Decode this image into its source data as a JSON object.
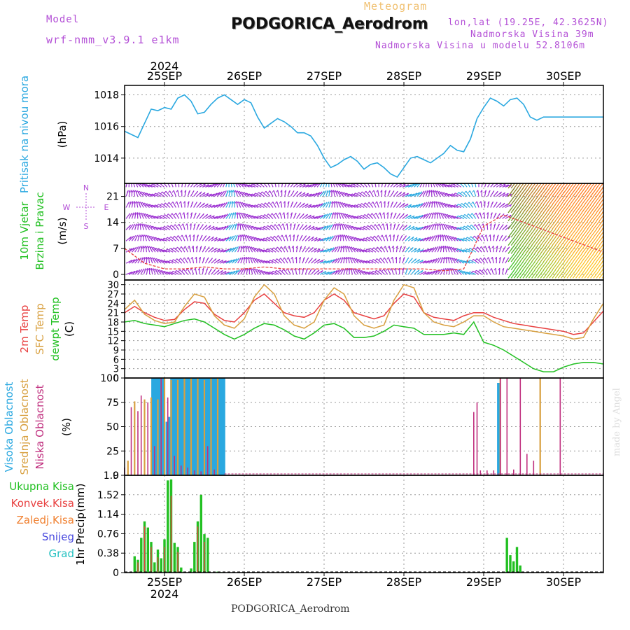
{
  "header": {
    "model_label": "Model",
    "model_name": "wrf-nmm_v3.9.1 e1km",
    "meteogram": "Meteogram",
    "station": "PODGORICA_Aerodrom",
    "lonlat": "lon,lat (19.25E, 42.3625N)",
    "elevation": "Nadmorska Visina 39m",
    "model_elevation": "Nadmorska Visina u modelu 52.8106m",
    "credit": "made by Angel",
    "footer_station": "PODGORICA_Aerodrom"
  },
  "time_axis": {
    "year": "2024",
    "days": [
      "25SEP",
      "26SEP",
      "27SEP",
      "28SEP",
      "29SEP",
      "30SEP"
    ]
  },
  "colors": {
    "pressure": "#2aa8e0",
    "wind_purple": "#9b2fd1",
    "wind_blue": "#2aa8e0",
    "wind_green": "#22c022",
    "temp_2m": "#e84040",
    "temp_sfc": "#d8a040",
    "dewpoint": "#22c022",
    "cloud_high": "#2aa8e0",
    "cloud_mid": "#d8a040",
    "cloud_low": "#c0307f",
    "precip_total": "#22c022",
    "precip_conv": "#e84040"
  },
  "chart_data": [
    {
      "type": "line",
      "ylabel_main": "Pritisak na nivou mora",
      "ylabel_unit": "(hPa)",
      "yticks": [
        1014,
        1016,
        1018
      ],
      "ylim": [
        1012.4,
        1018.6
      ],
      "xlim": [
        0,
        144
      ],
      "series": [
        {
          "x": [
            0,
            2,
            4,
            6,
            8,
            10,
            12,
            14,
            16,
            18,
            20,
            22,
            24,
            26,
            28,
            30,
            32,
            34,
            36,
            38,
            40,
            42,
            44,
            46,
            48,
            50,
            52,
            54,
            56,
            58,
            60,
            62,
            64,
            66,
            68,
            70,
            72,
            74,
            76,
            78,
            80,
            82,
            84,
            86,
            88,
            90,
            92,
            94,
            96,
            98,
            100,
            102,
            104,
            106,
            108,
            110,
            112,
            114,
            116,
            118,
            120,
            122,
            124,
            126,
            128,
            130,
            132,
            134,
            136,
            138,
            140,
            142,
            144
          ],
          "values": [
            1015.7,
            1015.5,
            1015.3,
            1016.2,
            1017.1,
            1017.0,
            1017.2,
            1017.1,
            1017.8,
            1018.0,
            1017.6,
            1016.8,
            1016.9,
            1017.4,
            1017.8,
            1018.0,
            1017.7,
            1017.4,
            1017.7,
            1017.5,
            1016.6,
            1015.9,
            1016.2,
            1016.5,
            1016.3,
            1016.0,
            1015.6,
            1015.6,
            1015.4,
            1014.8,
            1014.0,
            1013.4,
            1013.6,
            1013.9,
            1014.1,
            1013.8,
            1013.3,
            1013.6,
            1013.7,
            1013.4,
            1013.0,
            1012.8,
            1013.4,
            1014.0,
            1014.1,
            1013.9,
            1013.7,
            1014.0,
            1014.3,
            1014.8,
            1014.5,
            1014.4,
            1015.2,
            1016.5,
            1017.2,
            1017.8,
            1017.6,
            1017.3,
            1017.7,
            1017.8,
            1017.4,
            1016.6,
            1016.4,
            1016.6,
            1016.6,
            1016.6,
            1016.6,
            1016.6,
            1016.6,
            1016.6,
            1016.6,
            1016.6,
            1016.6
          ]
        }
      ]
    },
    {
      "type": "scatter",
      "ylabel_main": "10m Vjetar",
      "ylabel_sub": "Brzina i Pravac",
      "ylabel_unit": "(m/s)",
      "compass": {
        "n": "N",
        "s": "S",
        "w": "W",
        "e": "E"
      },
      "yticks": [
        0,
        7,
        14,
        21
      ],
      "ylim": [
        -1.5,
        24.5
      ],
      "xlim": [
        0,
        144
      ],
      "series": [
        {
          "name": "speed",
          "x": [
            0,
            6,
            12,
            18,
            24,
            30,
            36,
            42,
            48,
            54,
            60,
            66,
            72,
            78,
            84,
            90,
            96,
            102,
            108,
            114,
            120,
            126,
            132,
            138,
            144
          ],
          "values": [
            7,
            3,
            1.5,
            1.5,
            2,
            1.5,
            1.5,
            2,
            1.5,
            1.5,
            1.5,
            1.5,
            1.5,
            1.5,
            1.5,
            1.5,
            1,
            1.5,
            13,
            16,
            14,
            12,
            10,
            8,
            6
          ]
        }
      ]
    },
    {
      "type": "line",
      "ylabel_a": "2m Temp",
      "ylabel_b": "SFC Temp",
      "ylabel_c": "dewpt Temp",
      "ylabel_unit": "(C)",
      "yticks": [
        0,
        3,
        6,
        9,
        12,
        15,
        18,
        21,
        24,
        27,
        30
      ],
      "ylim": [
        0,
        31.5
      ],
      "xlim": [
        0,
        144
      ],
      "x": [
        0,
        3,
        6,
        9,
        12,
        15,
        18,
        21,
        24,
        27,
        30,
        33,
        36,
        39,
        42,
        45,
        48,
        51,
        54,
        57,
        60,
        63,
        66,
        69,
        72,
        75,
        78,
        81,
        84,
        87,
        90,
        93,
        96,
        99,
        102,
        105,
        108,
        111,
        114,
        117,
        120,
        123,
        126,
        129,
        132,
        135,
        138,
        141,
        144
      ],
      "series": [
        {
          "name": "2m Temp",
          "values": [
            21,
            23,
            21,
            19.5,
            18.5,
            18.8,
            22,
            24.5,
            24,
            20.5,
            18.5,
            18,
            21,
            25,
            27,
            24,
            21,
            20,
            19.5,
            21,
            25,
            27,
            25,
            21,
            20,
            19,
            20,
            24,
            27,
            26,
            21,
            19.5,
            19,
            18.5,
            20,
            21,
            21,
            19.5,
            18.5,
            17.5,
            17,
            16.5,
            16,
            15.5,
            15,
            14,
            14.5,
            18,
            21.5
          ]
        },
        {
          "name": "SFC Temp",
          "values": [
            22,
            25,
            20.5,
            18.5,
            17.5,
            18,
            23,
            27,
            26,
            20,
            17,
            16,
            19,
            26,
            30,
            27,
            20,
            17,
            16,
            18,
            25,
            29,
            27,
            20,
            17,
            16,
            17,
            25,
            30,
            29,
            21,
            18,
            17,
            16.5,
            18,
            20,
            20,
            18,
            16.5,
            16,
            15.5,
            15,
            14.5,
            14,
            13.5,
            12.5,
            13,
            19,
            24
          ]
        },
        {
          "name": "dewpt Temp",
          "values": [
            18,
            18.5,
            17.5,
            17,
            16.5,
            17.5,
            18.5,
            19,
            18,
            16,
            14,
            12.5,
            14,
            16,
            17.5,
            17,
            15.5,
            13.5,
            12.5,
            14.5,
            17,
            17.5,
            16,
            13,
            13,
            13.5,
            15,
            17,
            16.5,
            16,
            14,
            14,
            14,
            14.5,
            14,
            18,
            11.5,
            10.5,
            9,
            7,
            5,
            3,
            2,
            2,
            3.5,
            4.5,
            5,
            5,
            4.5
          ]
        }
      ]
    },
    {
      "type": "bar",
      "ylabel_a": "Visoka Oblacnost",
      "ylabel_b": "Srednja Oblacnost",
      "ylabel_c": "Niska Oblacnost",
      "ylabel_unit": "(%)",
      "yticks": [
        0,
        25,
        50,
        75,
        100
      ],
      "ylim": [
        0,
        100
      ],
      "xlim": [
        0,
        144
      ],
      "series": [
        {
          "name": "Visoka Oblacnost",
          "x": [
            8.5,
            9.2,
            10,
            10.7,
            11.4,
            12.8,
            13.5,
            14.2,
            15,
            15.7,
            16.4,
            17.1,
            17.8,
            18.5,
            19.2,
            20,
            20.7,
            21.4,
            22.1,
            22.8,
            23.5,
            24.2,
            24.9,
            25.6,
            26.3,
            27,
            27.7,
            28.4,
            29.1,
            29.8,
            112.5
          ],
          "values": [
            100,
            100,
            100,
            100,
            100,
            55,
            60,
            100,
            100,
            100,
            100,
            100,
            100,
            100,
            100,
            100,
            100,
            100,
            100,
            100,
            100,
            100,
            100,
            100,
            100,
            100,
            100,
            100,
            100,
            100,
            95
          ]
        },
        {
          "name": "Srednja Oblacnost",
          "x": [
            1,
            3,
            6,
            8,
            10,
            12,
            14,
            16,
            18,
            20,
            22,
            24,
            26,
            28,
            113,
            125
          ],
          "values": [
            15,
            76,
            78,
            80,
            78,
            100,
            98,
            98,
            100,
            100,
            100,
            98,
            100,
            100,
            100,
            100
          ]
        },
        {
          "name": "Niska Oblacnost",
          "x": [
            0,
            2,
            4,
            5,
            7,
            9,
            11,
            13,
            15,
            17,
            19,
            21,
            23,
            25,
            27,
            105,
            106,
            107,
            109,
            111,
            113,
            115,
            117,
            119,
            121,
            123,
            131
          ],
          "values": [
            8,
            70,
            66,
            82,
            75,
            30,
            100,
            80,
            20,
            10,
            8,
            5,
            4,
            30,
            6,
            65,
            75,
            5,
            5,
            5,
            100,
            100,
            6,
            100,
            22,
            15,
            100
          ]
        }
      ]
    },
    {
      "type": "bar",
      "legend": [
        "Ukupna Kisa",
        "Konvek.Kisa",
        "Zaledj.Kisa",
        "Snijeg",
        "Grad"
      ],
      "legend_colors": [
        "#22c022",
        "#e84040",
        "#f08030",
        "#4444dd",
        "#22c0c0"
      ],
      "ylabel_main": "1hr Precip",
      "ylabel_unit": "(mm)",
      "yticks": [
        0,
        0.38,
        0.76,
        1.14,
        1.52,
        1.9
      ],
      "ylim": [
        0,
        1.9
      ],
      "xlim": [
        0,
        144
      ],
      "series": [
        {
          "name": "Ukupna Kisa",
          "x": [
            3,
            4,
            5,
            6,
            7,
            8,
            9,
            10,
            11,
            12,
            13,
            14,
            15,
            16,
            17,
            20,
            21,
            22,
            23,
            24,
            25,
            26,
            27,
            28,
            29,
            114,
            115,
            116,
            117,
            118,
            119
          ],
          "values": [
            0.32,
            0.25,
            0.68,
            1.0,
            0.88,
            0.6,
            0.2,
            0.45,
            0.28,
            0.65,
            1.8,
            1.82,
            0.58,
            0.5,
            0.1,
            0.08,
            0.6,
            1.0,
            1.52,
            0.75,
            0.68,
            0.0,
            0.01,
            0.02,
            0.01,
            0.02,
            0.68,
            0.34,
            0.22,
            0.5,
            0.14
          ]
        },
        {
          "name": "Konvek.Kisa",
          "x": [
            4,
            6,
            8,
            10,
            12,
            14,
            16,
            22,
            24
          ],
          "values": [
            0.2,
            0.9,
            0.5,
            0.3,
            0.5,
            1.5,
            0.4,
            0.9,
            0.6
          ]
        }
      ]
    }
  ]
}
